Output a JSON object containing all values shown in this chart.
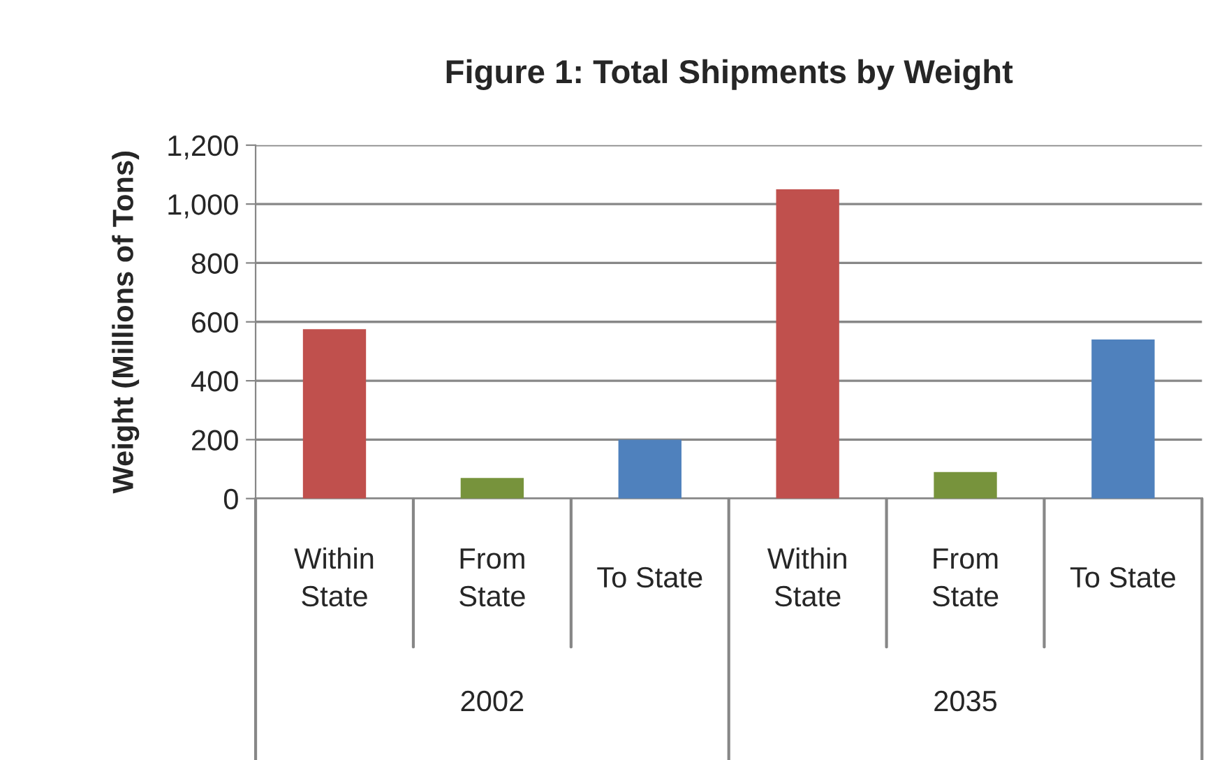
{
  "chart_data": {
    "type": "bar",
    "title": "Figure 1: Total Shipments by Weight",
    "ylabel": "Weight (Millions of Tons)",
    "categories": [
      "Within State",
      "From State",
      "To State",
      "Within State",
      "From State",
      "To State"
    ],
    "values": [
      575,
      70,
      200,
      1050,
      90,
      540
    ],
    "colors": [
      "#c0504d",
      "#77933c",
      "#4f81bd",
      "#c0504d",
      "#77933c",
      "#4f81bd"
    ],
    "annotations": [
      "2002",
      "2035"
    ],
    "ylim": [
      0,
      1200
    ],
    "yticks": [
      0,
      {
        "value": 200,
        "label": "200"
      },
      {
        "value": 400,
        "label": "400"
      },
      {
        "value": 600,
        "label": "600"
      },
      {
        "value": 800,
        "label": "800"
      },
      {
        "value": 1000,
        "label": "1,000"
      },
      {
        "value": 1200,
        "label": "1,200"
      }
    ],
    "grid": "y",
    "legend": false
  }
}
